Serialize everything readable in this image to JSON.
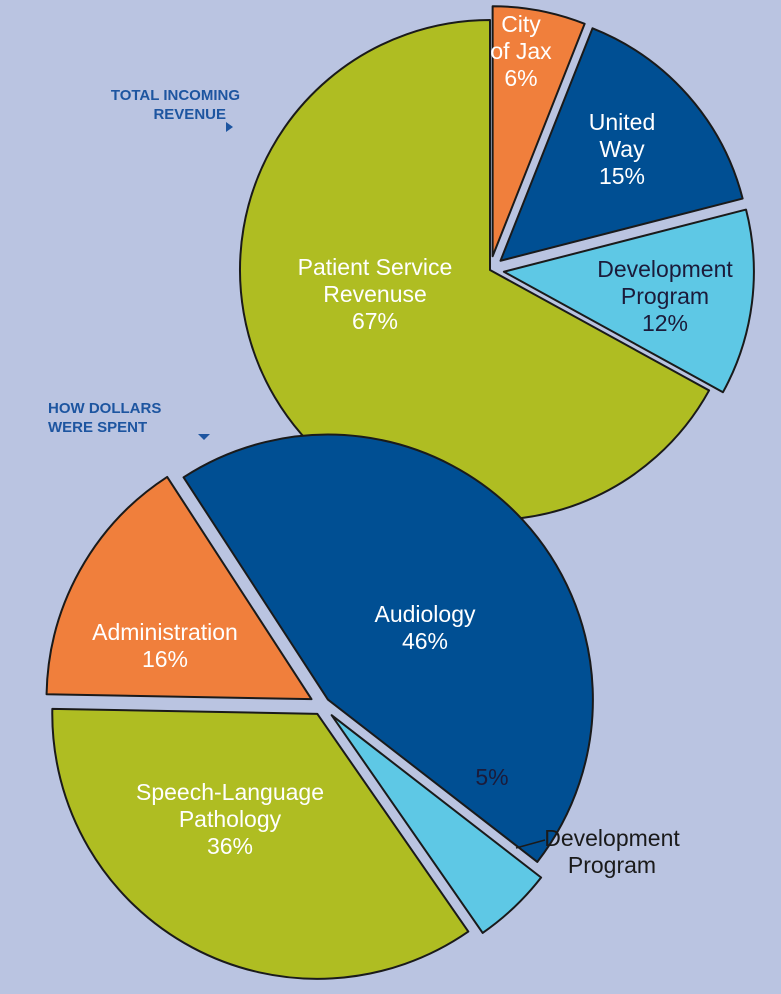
{
  "chart_data": [
    {
      "type": "pie",
      "title": "TOTAL INCOMING REVENUE",
      "labels": [
        "City of Jax",
        "United Way",
        "Development Program",
        "Patient Service Revenuse"
      ],
      "values": [
        6,
        15,
        12,
        67
      ],
      "value_labels": [
        "6%",
        "15%",
        "12%",
        "67%"
      ],
      "colors": [
        "#f07f3c",
        "#004f93",
        "#5ec8e5",
        "#afbd22"
      ]
    },
    {
      "type": "pie",
      "title": "HOW DOLLARS WERE SPENT",
      "labels": [
        "Audiology",
        "Development Program",
        "Speech-Language Pathology",
        "Administration"
      ],
      "values": [
        46,
        5,
        36,
        16
      ],
      "value_labels": [
        "46%",
        "5%",
        "36%",
        "16%"
      ],
      "colors": [
        "#004f93",
        "#5ec8e5",
        "#afbd22",
        "#f07f3c"
      ]
    }
  ]
}
